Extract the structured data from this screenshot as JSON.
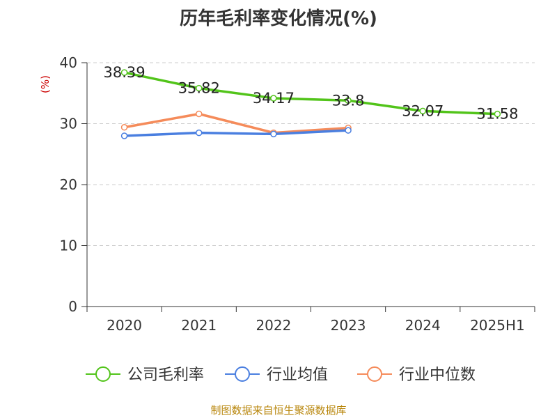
{
  "chart_data": {
    "type": "line",
    "title": "历年毛利率变化情况(%)",
    "ylabel": "(%)",
    "xlabel": "",
    "categories": [
      "2020",
      "2021",
      "2022",
      "2023",
      "2024",
      "2025H1"
    ],
    "ylim": [
      0,
      40
    ],
    "yticks": [
      0,
      10,
      20,
      30,
      40
    ],
    "grid": true,
    "legend_position": "bottom",
    "series": [
      {
        "name": "公司毛利率",
        "color": "#52c41a",
        "values": [
          38.39,
          35.82,
          34.17,
          33.8,
          32.07,
          31.58
        ],
        "labels": [
          "38.39",
          "35.82",
          "34.17",
          "33.8",
          "32.07",
          "31.58"
        ]
      },
      {
        "name": "行业均值",
        "color": "#4a7fe0",
        "values": [
          28.0,
          28.5,
          28.3,
          28.9,
          null,
          null
        ]
      },
      {
        "name": "行业中位数",
        "color": "#f58b5a",
        "values": [
          29.4,
          31.6,
          28.5,
          29.3,
          null,
          null
        ]
      }
    ]
  },
  "source": "制图数据来自恒生聚源数据库"
}
